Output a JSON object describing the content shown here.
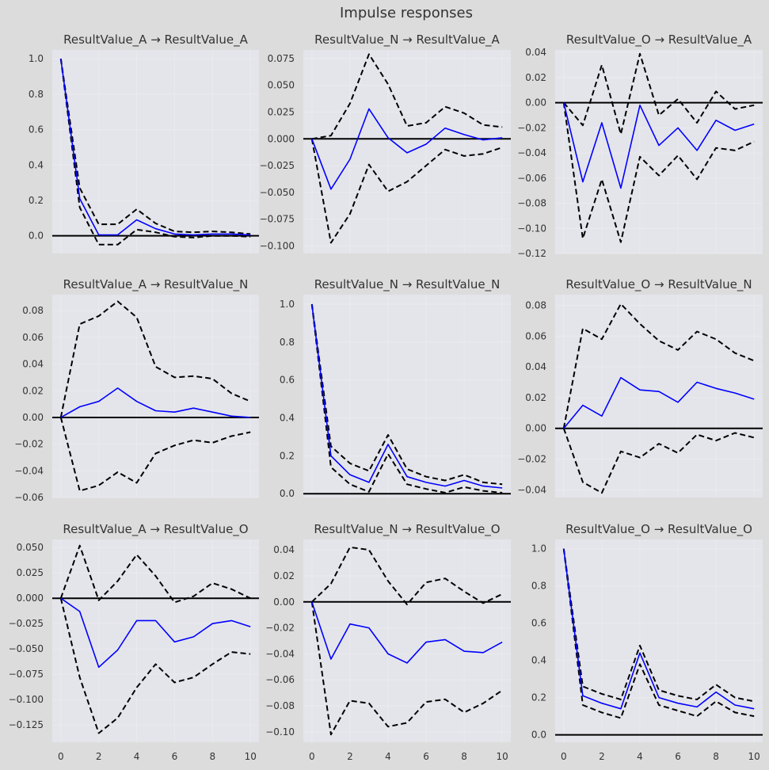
{
  "title": "Impulse responses",
  "chart_data": [
    {
      "type": "line",
      "title": "ResultValue_A → ResultValue_A",
      "x": [
        0,
        1,
        2,
        3,
        4,
        5,
        6,
        7,
        8,
        9,
        10
      ],
      "ylim": [
        -0.1,
        1.05
      ],
      "yticks": [
        "1.0",
        "0.8",
        "0.6",
        "0.4",
        "0.2",
        "0.0"
      ],
      "ytick_values": [
        1.0,
        0.8,
        0.6,
        0.4,
        0.2,
        0.0
      ],
      "series": [
        {
          "role": "irf",
          "color": "#0000ff",
          "values": [
            1.0,
            0.21,
            0.005,
            0.005,
            0.09,
            0.04,
            0.01,
            0.005,
            0.01,
            0.01,
            0.005
          ]
        },
        {
          "role": "upper",
          "color": "#000000",
          "values": [
            1.0,
            0.27,
            0.065,
            0.065,
            0.15,
            0.07,
            0.025,
            0.02,
            0.025,
            0.02,
            0.01
          ]
        },
        {
          "role": "lower",
          "color": "#000000",
          "values": [
            1.0,
            0.16,
            -0.05,
            -0.05,
            0.035,
            0.02,
            -0.005,
            -0.01,
            0.0,
            0.0,
            -0.005
          ]
        }
      ]
    },
    {
      "type": "line",
      "title": "ResultValue_N → ResultValue_A",
      "x": [
        0,
        1,
        2,
        3,
        4,
        5,
        6,
        7,
        8,
        9,
        10
      ],
      "ylim": [
        -0.107,
        0.083
      ],
      "yticks": [
        "0.075",
        "0.050",
        "0.025",
        "0.000",
        "−0.025",
        "−0.050",
        "−0.075",
        "−0.100"
      ],
      "ytick_values": [
        0.075,
        0.05,
        0.025,
        0.0,
        -0.025,
        -0.05,
        -0.075,
        -0.1
      ],
      "series": [
        {
          "role": "irf",
          "color": "#0000ff",
          "values": [
            0.0,
            -0.047,
            -0.019,
            0.028,
            0.001,
            -0.013,
            -0.005,
            0.01,
            0.004,
            -0.001,
            0.001
          ]
        },
        {
          "role": "upper",
          "color": "#000000",
          "values": [
            0.0,
            0.003,
            0.033,
            0.079,
            0.051,
            0.012,
            0.015,
            0.03,
            0.024,
            0.013,
            0.011
          ]
        },
        {
          "role": "lower",
          "color": "#000000",
          "values": [
            0.0,
            -0.097,
            -0.07,
            -0.024,
            -0.049,
            -0.04,
            -0.025,
            -0.01,
            -0.016,
            -0.014,
            -0.008
          ]
        }
      ]
    },
    {
      "type": "line",
      "title": "ResultValue_O → ResultValue_A",
      "x": [
        0,
        1,
        2,
        3,
        4,
        5,
        6,
        7,
        8,
        9,
        10
      ],
      "ylim": [
        -0.12,
        0.042
      ],
      "yticks": [
        "0.04",
        "0.02",
        "0.00",
        "−0.02",
        "−0.04",
        "−0.06",
        "−0.08",
        "−0.10",
        "−0.12"
      ],
      "ytick_values": [
        0.04,
        0.02,
        0.0,
        -0.02,
        -0.04,
        -0.06,
        -0.08,
        -0.1,
        -0.12
      ],
      "series": [
        {
          "role": "irf",
          "color": "#0000ff",
          "values": [
            0.0,
            -0.063,
            -0.016,
            -0.068,
            -0.002,
            -0.034,
            -0.02,
            -0.038,
            -0.014,
            -0.022,
            -0.017
          ]
        },
        {
          "role": "upper",
          "color": "#000000",
          "values": [
            0.0,
            -0.018,
            0.03,
            -0.025,
            0.039,
            -0.01,
            0.003,
            -0.016,
            0.009,
            -0.005,
            -0.002
          ]
        },
        {
          "role": "lower",
          "color": "#000000",
          "values": [
            0.0,
            -0.108,
            -0.061,
            -0.111,
            -0.043,
            -0.058,
            -0.042,
            -0.061,
            -0.036,
            -0.038,
            -0.031
          ]
        }
      ]
    },
    {
      "type": "line",
      "title": "ResultValue_A → ResultValue_N",
      "x": [
        0,
        1,
        2,
        3,
        4,
        5,
        6,
        7,
        8,
        9,
        10
      ],
      "ylim": [
        -0.06,
        0.092
      ],
      "yticks": [
        "0.08",
        "0.06",
        "0.04",
        "0.02",
        "0.00",
        "−0.02",
        "−0.04",
        "−0.06"
      ],
      "ytick_values": [
        0.08,
        0.06,
        0.04,
        0.02,
        0.0,
        -0.02,
        -0.04,
        -0.06
      ],
      "series": [
        {
          "role": "irf",
          "color": "#0000ff",
          "values": [
            0.0,
            0.008,
            0.012,
            0.022,
            0.012,
            0.005,
            0.004,
            0.007,
            0.004,
            0.001,
            0.0
          ]
        },
        {
          "role": "upper",
          "color": "#000000",
          "values": [
            0.0,
            0.07,
            0.076,
            0.087,
            0.075,
            0.038,
            0.03,
            0.031,
            0.029,
            0.018,
            0.012
          ]
        },
        {
          "role": "lower",
          "color": "#000000",
          "values": [
            0.0,
            -0.055,
            -0.051,
            -0.041,
            -0.049,
            -0.027,
            -0.021,
            -0.017,
            -0.019,
            -0.014,
            -0.011
          ]
        }
      ]
    },
    {
      "type": "line",
      "title": "ResultValue_N → ResultValue_N",
      "x": [
        0,
        1,
        2,
        3,
        4,
        5,
        6,
        7,
        8,
        9,
        10
      ],
      "ylim": [
        -0.02,
        1.05
      ],
      "yticks": [
        "1.0",
        "0.8",
        "0.6",
        "0.4",
        "0.2",
        "0.0"
      ],
      "ytick_values": [
        1.0,
        0.8,
        0.6,
        0.4,
        0.2,
        0.0
      ],
      "series": [
        {
          "role": "irf",
          "color": "#0000ff",
          "values": [
            1.0,
            0.2,
            0.1,
            0.06,
            0.26,
            0.09,
            0.06,
            0.04,
            0.07,
            0.04,
            0.03
          ]
        },
        {
          "role": "upper",
          "color": "#000000",
          "values": [
            1.0,
            0.25,
            0.16,
            0.12,
            0.31,
            0.13,
            0.09,
            0.07,
            0.1,
            0.06,
            0.05
          ]
        },
        {
          "role": "lower",
          "color": "#000000",
          "values": [
            1.0,
            0.14,
            0.05,
            0.01,
            0.21,
            0.05,
            0.025,
            0.005,
            0.035,
            0.015,
            0.005
          ]
        }
      ]
    },
    {
      "type": "line",
      "title": "ResultValue_O → ResultValue_N",
      "x": [
        0,
        1,
        2,
        3,
        4,
        5,
        6,
        7,
        8,
        9,
        10
      ],
      "ylim": [
        -0.045,
        0.087
      ],
      "yticks": [
        "0.08",
        "0.06",
        "0.04",
        "0.02",
        "0.00",
        "−0.02",
        "−0.04"
      ],
      "ytick_values": [
        0.08,
        0.06,
        0.04,
        0.02,
        0.0,
        -0.02,
        -0.04
      ],
      "series": [
        {
          "role": "irf",
          "color": "#0000ff",
          "values": [
            0.0,
            0.015,
            0.008,
            0.033,
            0.025,
            0.024,
            0.017,
            0.03,
            0.026,
            0.023,
            0.019
          ]
        },
        {
          "role": "upper",
          "color": "#000000",
          "values": [
            0.0,
            0.065,
            0.058,
            0.081,
            0.068,
            0.057,
            0.051,
            0.063,
            0.058,
            0.049,
            0.044
          ]
        },
        {
          "role": "lower",
          "color": "#000000",
          "values": [
            0.0,
            -0.035,
            -0.042,
            -0.015,
            -0.019,
            -0.01,
            -0.016,
            -0.004,
            -0.008,
            -0.003,
            -0.006
          ]
        }
      ]
    },
    {
      "type": "line",
      "title": "ResultValue_A → ResultValue_O",
      "x": [
        0,
        1,
        2,
        3,
        4,
        5,
        6,
        7,
        8,
        9,
        10
      ],
      "ylim": [
        -0.142,
        0.058
      ],
      "yticks": [
        "0.050",
        "0.025",
        "0.000",
        "−0.025",
        "−0.050",
        "−0.075",
        "−0.100",
        "−0.125"
      ],
      "ytick_values": [
        0.05,
        0.025,
        0.0,
        -0.025,
        -0.05,
        -0.075,
        -0.1,
        -0.125
      ],
      "series": [
        {
          "role": "irf",
          "color": "#0000ff",
          "values": [
            0.0,
            -0.013,
            -0.068,
            -0.051,
            -0.022,
            -0.022,
            -0.043,
            -0.038,
            -0.025,
            -0.022,
            -0.028
          ]
        },
        {
          "role": "upper",
          "color": "#000000",
          "values": [
            0.0,
            0.052,
            -0.002,
            0.017,
            0.043,
            0.022,
            -0.004,
            0.002,
            0.015,
            0.009,
            0.0
          ]
        },
        {
          "role": "lower",
          "color": "#000000",
          "values": [
            0.0,
            -0.078,
            -0.133,
            -0.118,
            -0.088,
            -0.065,
            -0.083,
            -0.078,
            -0.065,
            -0.053,
            -0.055
          ]
        }
      ]
    },
    {
      "type": "line",
      "title": "ResultValue_N → ResultValue_O",
      "x": [
        0,
        1,
        2,
        3,
        4,
        5,
        6,
        7,
        8,
        9,
        10
      ],
      "ylim": [
        -0.108,
        0.048
      ],
      "yticks": [
        "0.04",
        "0.02",
        "0.00",
        "−0.02",
        "−0.04",
        "−0.06",
        "−0.08",
        "−0.10"
      ],
      "ytick_values": [
        0.04,
        0.02,
        0.0,
        -0.02,
        -0.04,
        -0.06,
        -0.08,
        -0.1
      ],
      "series": [
        {
          "role": "irf",
          "color": "#0000ff",
          "values": [
            0.0,
            -0.044,
            -0.017,
            -0.02,
            -0.04,
            -0.047,
            -0.031,
            -0.029,
            -0.038,
            -0.039,
            -0.031
          ]
        },
        {
          "role": "upper",
          "color": "#000000",
          "values": [
            0.0,
            0.014,
            0.042,
            0.04,
            0.016,
            -0.002,
            0.015,
            0.018,
            0.008,
            -0.001,
            0.006
          ]
        },
        {
          "role": "lower",
          "color": "#000000",
          "values": [
            0.0,
            -0.102,
            -0.076,
            -0.078,
            -0.096,
            -0.093,
            -0.077,
            -0.075,
            -0.085,
            -0.078,
            -0.068
          ]
        }
      ]
    },
    {
      "type": "line",
      "title": "ResultValue_O → ResultValue_O",
      "x": [
        0,
        1,
        2,
        3,
        4,
        5,
        6,
        7,
        8,
        9,
        10
      ],
      "ylim": [
        -0.04,
        1.05
      ],
      "yticks": [
        "1.0",
        "0.8",
        "0.6",
        "0.4",
        "0.2",
        "0.0"
      ],
      "ytick_values": [
        1.0,
        0.8,
        0.6,
        0.4,
        0.2,
        0.0
      ],
      "series": [
        {
          "role": "irf",
          "color": "#0000ff",
          "values": [
            1.0,
            0.21,
            0.17,
            0.14,
            0.44,
            0.2,
            0.17,
            0.15,
            0.23,
            0.16,
            0.14
          ]
        },
        {
          "role": "upper",
          "color": "#000000",
          "values": [
            1.0,
            0.26,
            0.22,
            0.19,
            0.48,
            0.24,
            0.21,
            0.19,
            0.27,
            0.2,
            0.18
          ]
        },
        {
          "role": "lower",
          "color": "#000000",
          "values": [
            1.0,
            0.16,
            0.12,
            0.09,
            0.38,
            0.16,
            0.13,
            0.1,
            0.18,
            0.12,
            0.1
          ]
        }
      ]
    }
  ],
  "xticks": [
    "0",
    "2",
    "4",
    "6",
    "8",
    "10"
  ],
  "xtick_values": [
    0,
    2,
    4,
    6,
    8,
    10
  ],
  "colors": {
    "background": "#dcdcdc",
    "plot_bg": "#e4e5ea",
    "grid": "#eaeaef",
    "zero_line": "#000000"
  }
}
